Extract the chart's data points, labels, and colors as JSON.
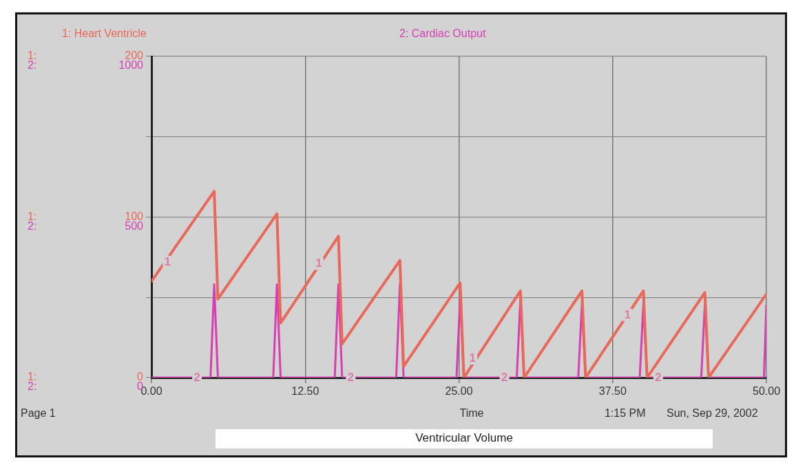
{
  "chart_data": {
    "type": "line",
    "title": "Ventricular Volume",
    "xlabel": "Time",
    "legend": "top",
    "grid": true,
    "marker": "none",
    "line_style": "solid",
    "xlim": [
      0,
      50
    ],
    "xticks": [
      {
        "value": 0,
        "label": "0.00"
      },
      {
        "value": 12.5,
        "label": "12.50"
      },
      {
        "value": 25,
        "label": "25.00"
      },
      {
        "value": 37.5,
        "label": "37.50"
      },
      {
        "value": 50,
        "label": "50.00"
      }
    ],
    "ylim": [
      0,
      200
    ],
    "yticks": [
      0,
      {
        "value": 50,
        "label": null
      },
      100,
      {
        "value": 150,
        "label": null
      },
      200
    ],
    "y2lim": [
      0,
      1000
    ],
    "y2ticks": [
      0,
      500,
      1000
    ],
    "series": [
      {
        "name": "1: Heart Ventricle",
        "color": "#e8685a",
        "x": [
          0,
          5.1,
          5.4,
          10.2,
          10.5,
          15.2,
          15.5,
          20.2,
          20.5,
          25.1,
          25.4,
          30.0,
          30.3,
          35.0,
          35.3,
          40.0,
          40.3,
          45.0,
          45.3,
          50
        ],
        "values": [
          60,
          116,
          49,
          102,
          34,
          88,
          21,
          73,
          7,
          59,
          0,
          54,
          0,
          54,
          0,
          54,
          0,
          53,
          0,
          52
        ]
      },
      {
        "name": "2: Cardiac Output",
        "color": "#d63fb0",
        "axis": "y2",
        "x": [
          0,
          4.8,
          5.1,
          5.4,
          9.9,
          10.2,
          10.5,
          14.9,
          15.2,
          15.5,
          19.9,
          20.2,
          20.5,
          24.8,
          25.1,
          25.4,
          29.7,
          30.0,
          30.3,
          34.7,
          35.0,
          35.3,
          39.7,
          40.0,
          40.3,
          44.7,
          45.0,
          45.3,
          49.8,
          50
        ],
        "values": [
          0,
          0,
          290,
          0,
          0,
          290,
          0,
          0,
          290,
          0,
          0,
          290,
          0,
          0,
          250,
          0,
          0,
          245,
          0,
          0,
          230,
          0,
          0,
          230,
          0,
          0,
          230,
          0,
          0,
          225
        ]
      }
    ],
    "annotations": [
      {
        "text": "1",
        "x": 1.3,
        "y": 72
      },
      {
        "text": "1",
        "x": 13.6,
        "y": 71
      },
      {
        "text": "1",
        "x": 26.1,
        "y": 12
      },
      {
        "text": "1",
        "x": 38.7,
        "y": 39
      },
      {
        "text": "2",
        "x": 3.7,
        "y": 0
      },
      {
        "text": "2",
        "x": 16.2,
        "y": 0
      },
      {
        "text": "2",
        "x": 28.7,
        "y": 0
      },
      {
        "text": "2",
        "x": 41.2,
        "y": 0
      },
      "1:",
      "2:",
      "1:",
      "2:",
      "1:",
      "2:",
      "Page 1",
      "1:15 PM",
      "Sun, Sep 29, 2002"
    ]
  }
}
